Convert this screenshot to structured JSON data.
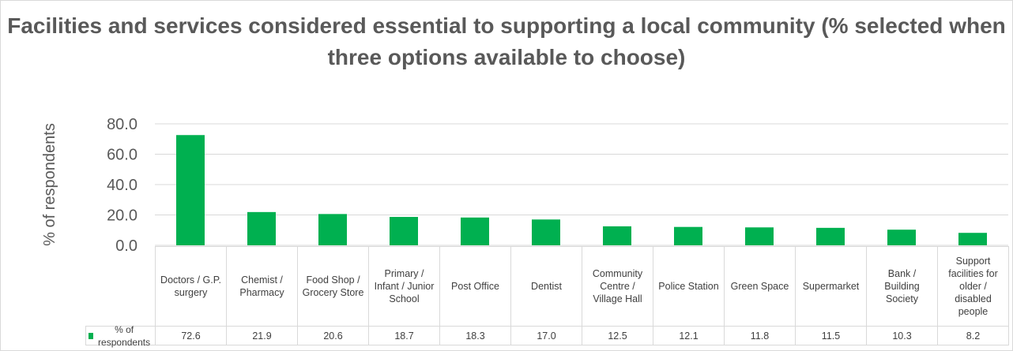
{
  "chart_data": {
    "type": "bar",
    "title": "Facilities and services considered essential to supporting a local community (% selected when three options available to choose)",
    "y_label": "% of respondents",
    "categories": [
      "Doctors / G.P. surgery",
      "Chemist / Pharmacy",
      "Food Shop / Grocery Store",
      "Primary / Infant / Junior School",
      "Post Office",
      "Dentist",
      "Community Centre / Village Hall",
      "Police Station",
      "Green Space",
      "Supermarket",
      "Bank / Building Society",
      "Support facilities for older / disabled people"
    ],
    "series": [
      {
        "name": "% of respondents",
        "color": "#00b050",
        "values": [
          72.6,
          21.9,
          20.6,
          18.7,
          18.3,
          17.0,
          12.5,
          12.1,
          11.8,
          11.5,
          10.3,
          8.2
        ],
        "value_labels": [
          "72.6",
          "21.9",
          "20.6",
          "18.7",
          "18.3",
          "17.0",
          "12.5",
          "12.1",
          "11.8",
          "11.5",
          "10.3",
          "8.2"
        ]
      }
    ],
    "ylim": [
      0,
      80
    ],
    "yticks": [
      {
        "value": 0,
        "label": "0.0"
      },
      {
        "value": 20,
        "label": "20.0"
      },
      {
        "value": 40,
        "label": "40.0"
      },
      {
        "value": 60,
        "label": "60.0"
      },
      {
        "value": 80,
        "label": "80.0"
      }
    ],
    "grid": true
  }
}
